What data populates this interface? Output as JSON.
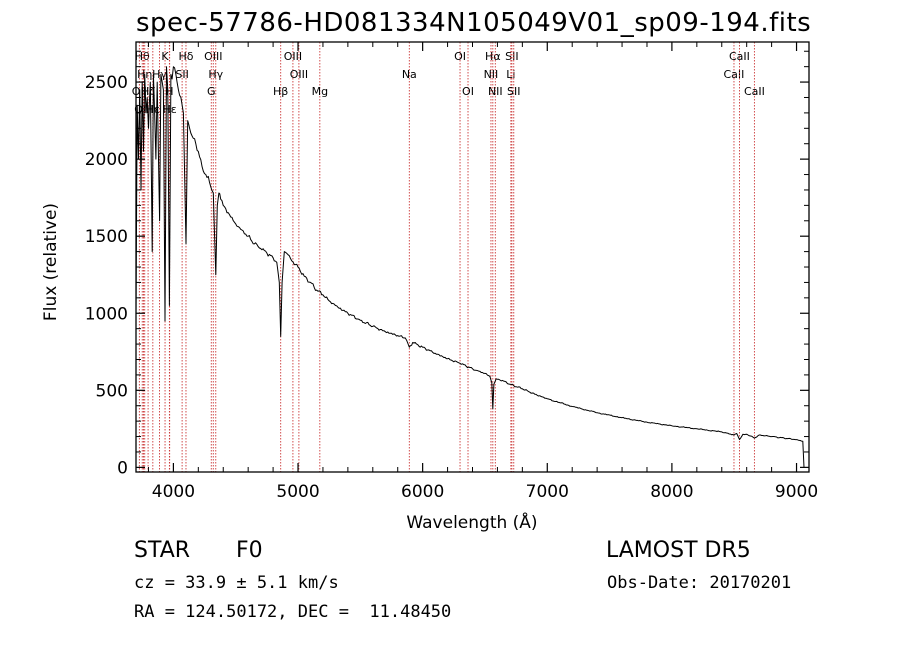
{
  "chart_data": {
    "type": "line",
    "title": "spec-57786-HD081334N105049V01_sp09-194.fits",
    "xlabel": "Wavelength (Å)",
    "ylabel": "Flux (relative)",
    "xlim": [
      3700,
      9100
    ],
    "ylim": [
      -30,
      2760
    ],
    "x_ticks": [
      4000,
      5000,
      6000,
      7000,
      8000,
      9000
    ],
    "y_ticks": [
      0,
      500,
      1000,
      1500,
      2000,
      2500
    ],
    "grid": false,
    "series": [
      {
        "x": [
          3700,
          3710,
          3720,
          3730,
          3740,
          3750,
          3760,
          3770,
          3780,
          3790,
          3800,
          3815,
          3830,
          3840,
          3860,
          3870,
          3889,
          3900,
          3920,
          3933,
          3945,
          3955,
          3968,
          3980,
          3990,
          4000,
          4020,
          4040,
          4060,
          4080,
          4101,
          4115,
          4130,
          4150,
          4180,
          4200,
          4230,
          4260,
          4290,
          4320,
          4340,
          4352,
          4365,
          4380,
          4400,
          4450,
          4500,
          4550,
          4600,
          4650,
          4700,
          4750,
          4800,
          4830,
          4850,
          4861,
          4872,
          4890,
          4920,
          4950,
          5000,
          5050,
          5100,
          5150,
          5200,
          5250,
          5300,
          5400,
          5500,
          5600,
          5700,
          5800,
          5860,
          5893,
          5920,
          6000,
          6100,
          6200,
          6300,
          6400,
          6450,
          6500,
          6540,
          6555,
          6563,
          6572,
          6590,
          6650,
          6700,
          6800,
          6900,
          7000,
          7200,
          7400,
          7600,
          7800,
          8000,
          8200,
          8400,
          8498,
          8520,
          8542,
          8570,
          8600,
          8662,
          8700,
          8800,
          8900,
          9000,
          9050,
          9060
        ],
        "values": [
          1000,
          2350,
          2000,
          2450,
          1800,
          2500,
          2050,
          2550,
          2300,
          2400,
          2200,
          2500,
          1400,
          2550,
          2000,
          2500,
          1600,
          2550,
          2450,
          950,
          2600,
          2450,
          1050,
          2550,
          2520,
          2600,
          2550,
          2450,
          2400,
          2300,
          1450,
          2250,
          2200,
          2150,
          2100,
          2050,
          1950,
          1900,
          1850,
          1780,
          1250,
          1700,
          1780,
          1740,
          1700,
          1640,
          1580,
          1540,
          1500,
          1450,
          1420,
          1390,
          1360,
          1330,
          1200,
          850,
          1200,
          1400,
          1380,
          1340,
          1300,
          1240,
          1200,
          1150,
          1120,
          1080,
          1050,
          1000,
          955,
          915,
          880,
          855,
          840,
          780,
          810,
          780,
          740,
          705,
          675,
          640,
          625,
          610,
          590,
          550,
          380,
          540,
          575,
          560,
          540,
          510,
          475,
          445,
          395,
          355,
          322,
          293,
          270,
          250,
          230,
          210,
          220,
          180,
          215,
          215,
          190,
          210,
          200,
          190,
          180,
          170,
          0
        ]
      }
    ],
    "lines": [
      {
        "label": "OII",
        "x": 3727,
        "row": 2
      },
      {
        "label": "Hθ",
        "x": 3750,
        "row": 0
      },
      {
        "label": "OIII",
        "x": 3760,
        "row": 3
      },
      {
        "label": "Hη",
        "x": 3770,
        "row": 1
      },
      {
        "label": "Hζ",
        "x": 3797,
        "row": 2
      },
      {
        "label": "Hε",
        "x": 3835,
        "row": 3
      },
      {
        "label": "Hγ",
        "x": 3889,
        "row": 1
      },
      {
        "label": "K",
        "x": 3933,
        "row": 0
      },
      {
        "label": "H",
        "x": 3968,
        "row": 2
      },
      {
        "label": "Hε",
        "x": 3970,
        "row": 3
      },
      {
        "label": "Hδ",
        "x": 4101,
        "row": 0
      },
      {
        "label": "SII",
        "x": 4070,
        "row": 1
      },
      {
        "label": "OIII",
        "x": 4320,
        "row": 0
      },
      {
        "label": "Hγ",
        "x": 4340,
        "row": 1
      },
      {
        "label": "G",
        "x": 4304,
        "row": 2
      },
      {
        "label": "Hβ",
        "x": 4861,
        "row": 2
      },
      {
        "label": "OIII",
        "x": 4959,
        "row": 0
      },
      {
        "label": "OIII",
        "x": 5007,
        "row": 1
      },
      {
        "label": "Mg",
        "x": 5175,
        "row": 2
      },
      {
        "label": "Na",
        "x": 5893,
        "row": 1
      },
      {
        "label": "OI",
        "x": 6300,
        "row": 0
      },
      {
        "label": "OI",
        "x": 6364,
        "row": 2
      },
      {
        "label": "Hα",
        "x": 6563,
        "row": 0
      },
      {
        "label": "NII",
        "x": 6548,
        "row": 1
      },
      {
        "label": "NII",
        "x": 6583,
        "row": 2
      },
      {
        "label": "SII",
        "x": 6716,
        "row": 0
      },
      {
        "label": "Li",
        "x": 6708,
        "row": 1
      },
      {
        "label": "SII",
        "x": 6731,
        "row": 2
      },
      {
        "label": "CaII",
        "x": 8498,
        "row": 1
      },
      {
        "label": "CaII",
        "x": 8542,
        "row": 0
      },
      {
        "label": "CaII",
        "x": 8662,
        "row": 2
      }
    ]
  },
  "info": {
    "obj_class": "STAR",
    "obj_subclass": "F0",
    "survey": "LAMOST DR5",
    "cz": "cz = 33.9 ± 5.1 km/s",
    "obs_date": "Obs-Date: 20170201",
    "radec": "RA = 124.50172, DEC =  11.48450"
  },
  "colors": {
    "spectrum": "#000000",
    "line_markers": "#cc3a3a",
    "background": "#ffffff"
  }
}
